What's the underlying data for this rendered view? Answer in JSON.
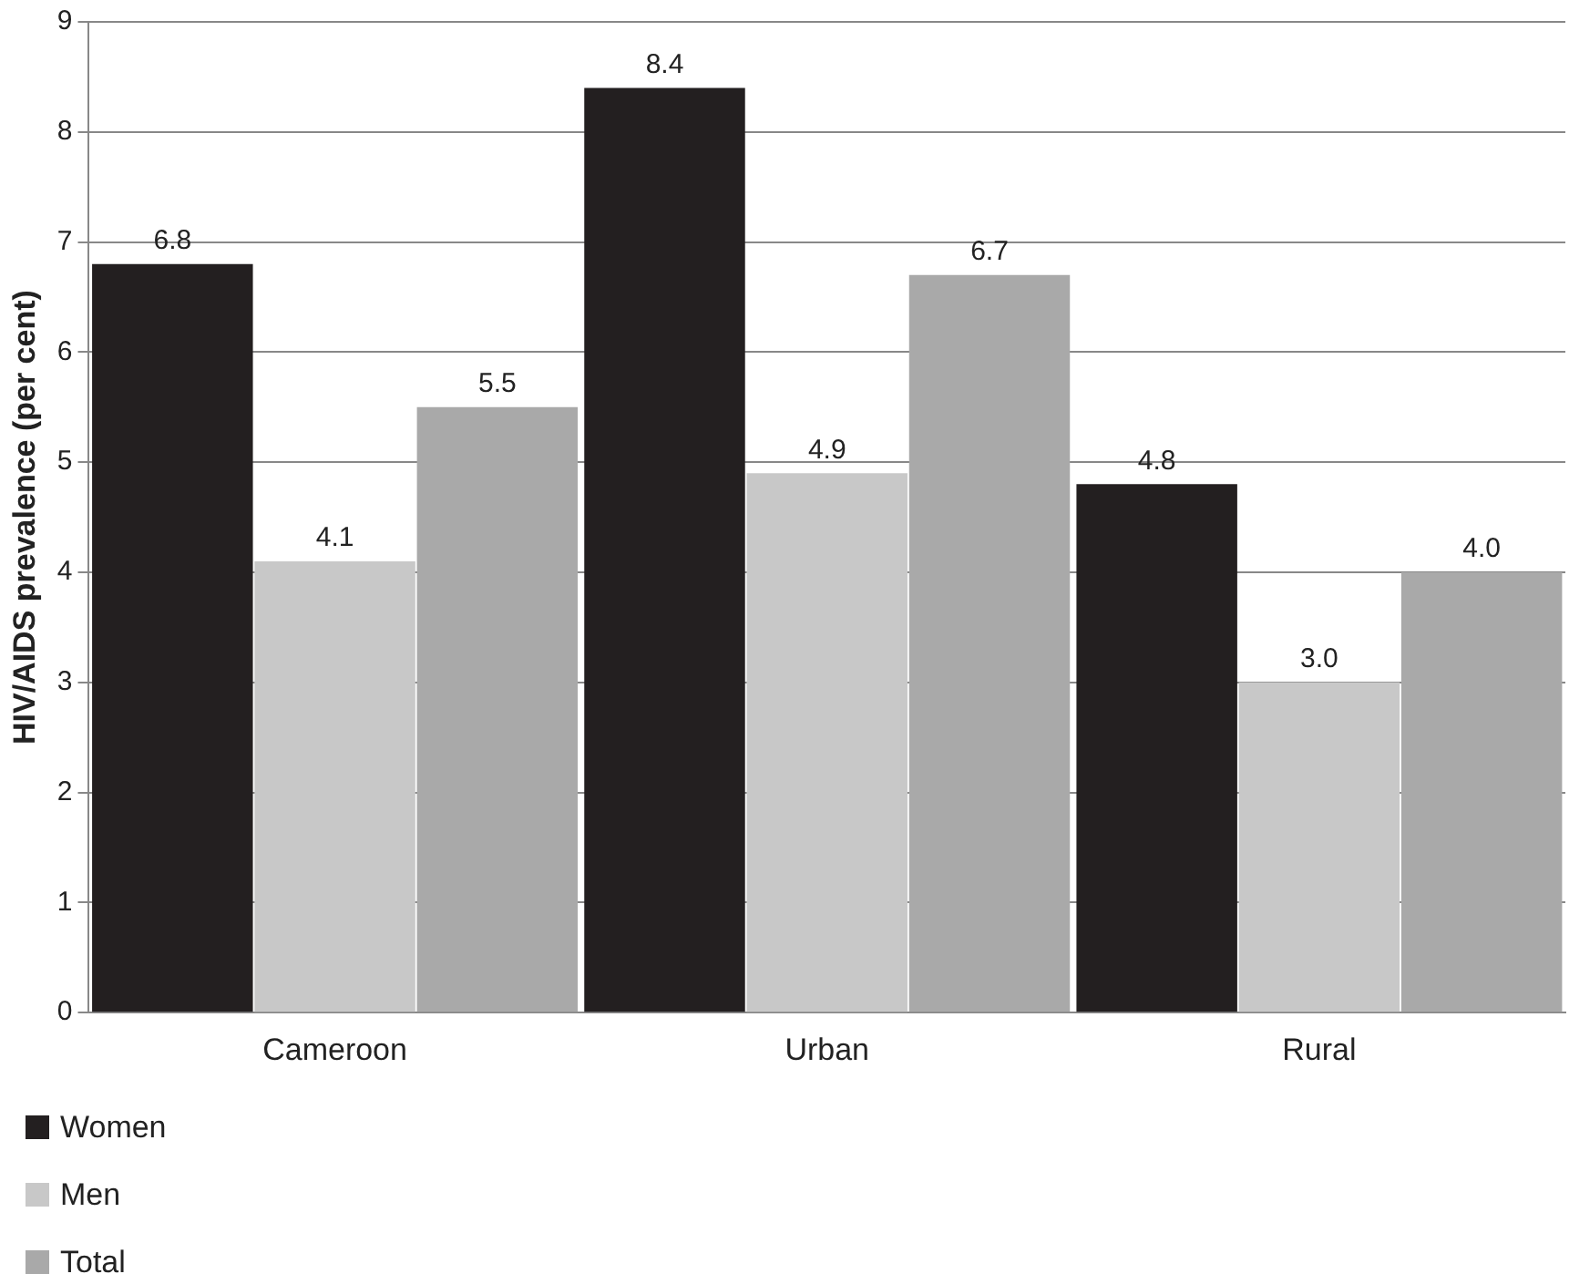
{
  "chart_data": {
    "type": "bar",
    "ylabel": "HIV/AIDS prevalence (per cent)",
    "categories": [
      "Cameroon",
      "Urban",
      "Rural"
    ],
    "series": [
      {
        "name": "Women",
        "color": "#231f20",
        "values": [
          6.8,
          8.4,
          4.8
        ],
        "value_labels": [
          "6.8",
          "8.4",
          "4.8"
        ]
      },
      {
        "name": "Men",
        "color": "#c8c8c8",
        "values": [
          4.1,
          4.9,
          3.0
        ],
        "value_labels": [
          "4.1",
          "4.9",
          "3.0"
        ]
      },
      {
        "name": "Total",
        "color": "#a9a9a9",
        "values": [
          5.5,
          6.7,
          4.0
        ],
        "value_labels": [
          "5.5",
          "6.7",
          "4.0"
        ]
      }
    ],
    "ylim": [
      0,
      9
    ],
    "yticks": [
      0,
      1,
      2,
      3,
      4,
      5,
      6,
      7,
      8,
      9
    ],
    "grid": "y",
    "legend": "bottom left"
  }
}
